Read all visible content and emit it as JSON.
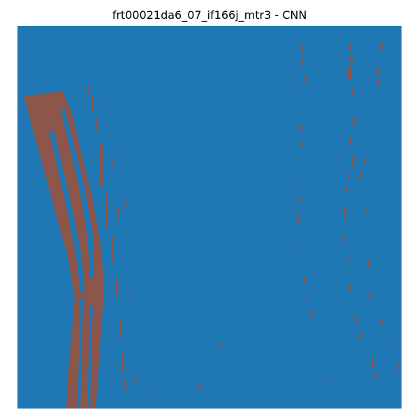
{
  "figure": {
    "title": "frt00021da6_07_if166j_mtr3 - CNN"
  },
  "colors": {
    "background": "#1f77b4",
    "detection": "#8c564b"
  }
}
